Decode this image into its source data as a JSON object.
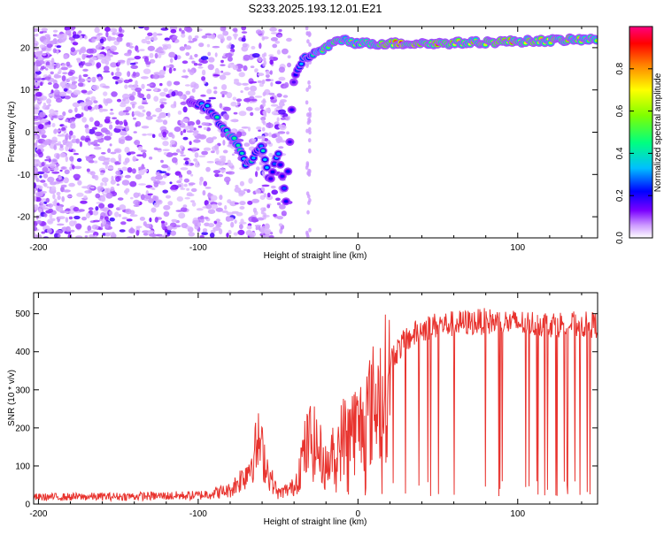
{
  "title": "S233.2025.193.12.01.E21",
  "chart_data": [
    {
      "type": "heatmap",
      "xlabel": "Height of straight line (km)",
      "ylabel": "Frequency (Hz)",
      "xlim": [
        -203,
        150
      ],
      "ylim": [
        -25,
        25
      ],
      "xticks": [
        -200,
        -100,
        0,
        100
      ],
      "yticks": [
        -20,
        -10,
        0,
        10,
        20
      ],
      "grid": false,
      "colorbar": {
        "label": "Normalized spectral amplitude",
        "range": [
          0,
          1
        ],
        "ticks": [
          "0.0",
          "0.2",
          "0.4",
          "0.6",
          "0.8"
        ],
        "colors": [
          "#ffffff",
          "#cc99ff",
          "#7a00ff",
          "#0000ff",
          "#00bfff",
          "#00ff80",
          "#80ff00",
          "#ffff00",
          "#ff8000",
          "#ff0000",
          "#ff0080"
        ]
      },
      "ridge": {
        "x": [
          -105,
          -95,
          -88,
          -80,
          -75,
          -70,
          -60,
          -55,
          -50,
          -45,
          -40,
          -35,
          -25,
          -20,
          -10,
          0,
          20,
          50,
          100,
          150
        ],
        "y": [
          7,
          6,
          3,
          -1,
          -3,
          -8,
          -3,
          -12,
          -5,
          -16,
          13,
          17,
          19,
          20,
          22,
          21,
          21,
          21,
          21.5,
          22
        ],
        "amplitude": [
          0.3,
          0.45,
          0.5,
          0.6,
          0.55,
          0.5,
          0.45,
          0.35,
          0.4,
          0.3,
          0.3,
          0.45,
          0.6,
          0.75,
          0.7,
          0.6,
          0.9,
          0.85,
          0.8,
          0.75
        ]
      }
    },
    {
      "type": "line",
      "xlabel": "Height of straight line (km)",
      "ylabel": "SNR (10 * v/v)",
      "xlim": [
        -203,
        150
      ],
      "ylim": [
        0,
        555
      ],
      "xticks": [
        -200,
        -100,
        0,
        100
      ],
      "yticks": [
        0,
        100,
        200,
        300,
        400,
        500
      ],
      "color": "#e8332e",
      "grid": false,
      "envelope": {
        "x": [
          -203,
          -150,
          -100,
          -80,
          -70,
          -62,
          -55,
          -50,
          -40,
          -35,
          -30,
          -25,
          -20,
          -10,
          -5,
          0,
          10,
          20,
          30,
          40,
          50,
          80,
          100,
          150
        ],
        "y": [
          20,
          22,
          25,
          40,
          90,
          180,
          80,
          30,
          50,
          140,
          200,
          170,
          110,
          200,
          240,
          230,
          310,
          380,
          430,
          460,
          470,
          480,
          475,
          470
        ]
      }
    }
  ]
}
